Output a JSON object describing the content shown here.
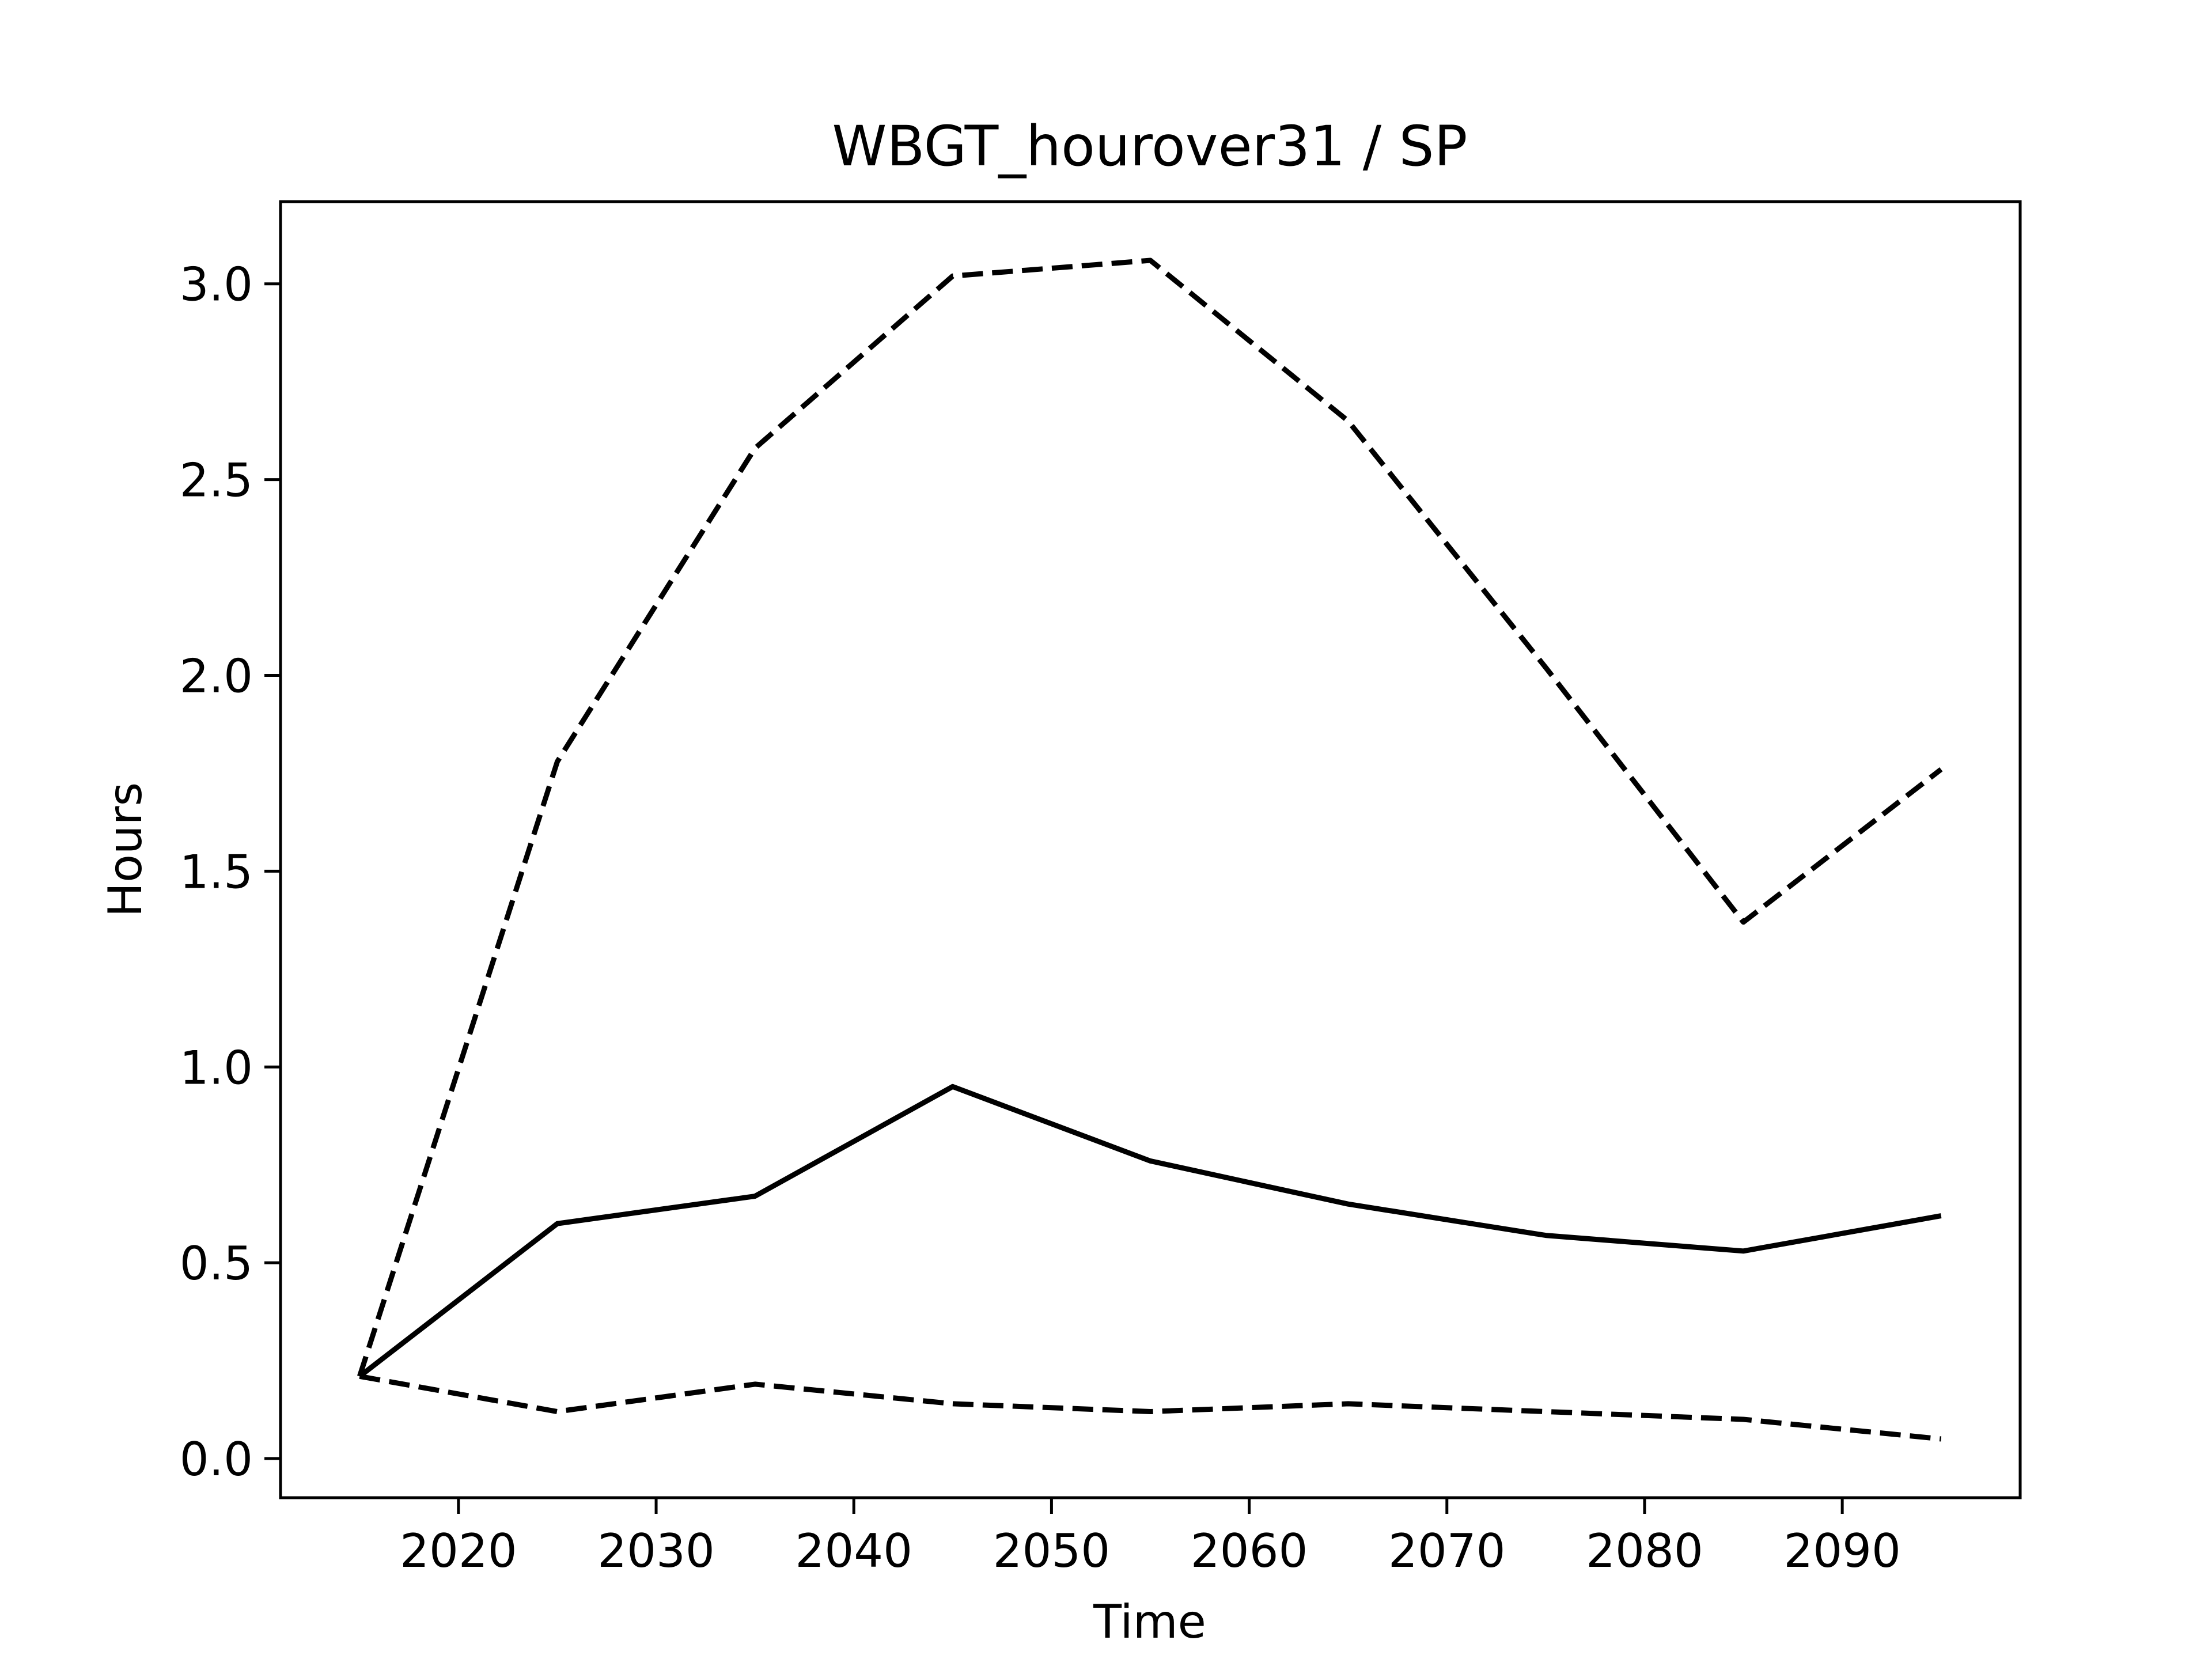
{
  "chart_data": {
    "type": "line",
    "title": "WBGT_hourover31 / SP",
    "xlabel": "Time",
    "ylabel": "Hours",
    "xlim": [
      2011,
      2099
    ],
    "ylim": [
      -0.1,
      3.21
    ],
    "x_ticks": [
      2020,
      2030,
      2040,
      2050,
      2060,
      2070,
      2080,
      2090
    ],
    "y_ticks": [
      0.0,
      0.5,
      1.0,
      1.5,
      2.0,
      2.5,
      3.0
    ],
    "y_tick_labels": [
      "0.0",
      "0.5",
      "1.0",
      "1.5",
      "2.0",
      "2.5",
      "3.0"
    ],
    "grid": false,
    "legend": "none",
    "x": [
      2015,
      2025,
      2035,
      2045,
      2055,
      2065,
      2075,
      2085,
      2095
    ],
    "series": [
      {
        "style": "dashed",
        "color": "#000000",
        "values": [
          0.21,
          1.78,
          2.58,
          3.02,
          3.06,
          2.65,
          2.02,
          1.37,
          1.76
        ]
      },
      {
        "style": "solid",
        "color": "#000000",
        "values": [
          0.21,
          0.6,
          0.67,
          0.95,
          0.76,
          0.65,
          0.57,
          0.53,
          0.62
        ]
      },
      {
        "style": "dashed",
        "color": "#000000",
        "values": [
          0.21,
          0.12,
          0.19,
          0.14,
          0.12,
          0.14,
          0.12,
          0.1,
          0.05
        ]
      }
    ]
  }
}
